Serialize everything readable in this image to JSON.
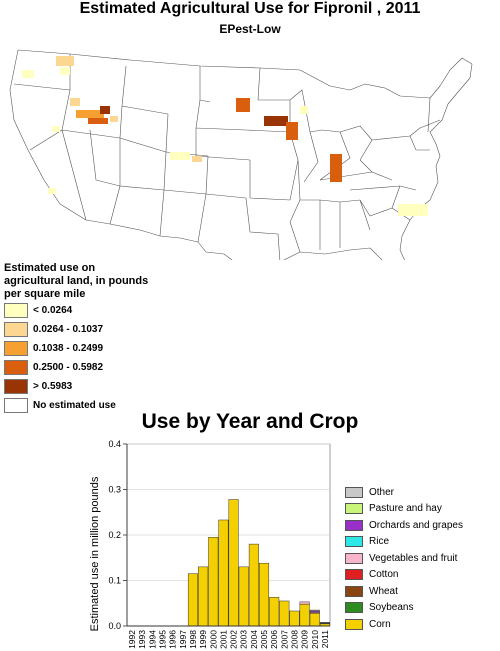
{
  "map": {
    "title": "Estimated Agricultural Use for Fipronil , 2011",
    "subtitle": "EPest-Low",
    "legend": {
      "title": "Estimated use on agricultural land, in pounds per square mile",
      "items": [
        {
          "label": "< 0.0264",
          "color": "#ffffc0"
        },
        {
          "label": "0.0264 - 0.1037",
          "color": "#fbd791"
        },
        {
          "label": "0.1038 - 0.2499",
          "color": "#f5a031"
        },
        {
          "label": "0.2500 - 0.5982",
          "color": "#d95f0e"
        },
        {
          "label": "> 0.5983",
          "color": "#993404"
        },
        {
          "label": "No estimated use",
          "color": "#ffffff"
        }
      ]
    }
  },
  "chart": {
    "title": "Use by Year and Crop",
    "legend": [
      {
        "label": "Other",
        "color": "#c8c8c8"
      },
      {
        "label": "Pasture and hay",
        "color": "#c8f57a"
      },
      {
        "label": "Orchards and grapes",
        "color": "#9b30c8"
      },
      {
        "label": "Rice",
        "color": "#2ee8e8"
      },
      {
        "label": "Vegetables and fruit",
        "color": "#f8b4c8"
      },
      {
        "label": "Cotton",
        "color": "#e02020"
      },
      {
        "label": "Wheat",
        "color": "#8b4513"
      },
      {
        "label": "Soybeans",
        "color": "#2e8b22"
      },
      {
        "label": "Corn",
        "color": "#f5d000"
      }
    ]
  },
  "chart_data": {
    "type": "bar",
    "title": "Use by Year and Crop",
    "xlabel": "",
    "ylabel": "Estimated use in million pounds",
    "ylim": [
      0,
      0.4
    ],
    "yticks": [
      "0.0",
      "0.1",
      "0.2",
      "0.3",
      "0.4"
    ],
    "grid": true,
    "legend_position": "right",
    "categories": [
      "1992",
      "1993",
      "1994",
      "1995",
      "1996",
      "1997",
      "1998",
      "1999",
      "2000",
      "2001",
      "2002",
      "2003",
      "2004",
      "2005",
      "2006",
      "2007",
      "2008",
      "2009",
      "2010",
      "2011"
    ],
    "series": [
      {
        "name": "Corn",
        "values": [
          0,
          0,
          0,
          0,
          0,
          0,
          0.115,
          0.13,
          0.195,
          0.233,
          0.278,
          0.13,
          0.18,
          0.138,
          0.063,
          0.055,
          0.033,
          0.048,
          0.028,
          0.005
        ]
      },
      {
        "name": "Soybeans",
        "values": [
          0,
          0,
          0,
          0,
          0,
          0,
          0,
          0,
          0,
          0,
          0,
          0,
          0,
          0,
          0,
          0,
          0,
          0,
          0,
          0
        ]
      },
      {
        "name": "Wheat",
        "values": [
          0,
          0,
          0,
          0,
          0,
          0,
          0,
          0,
          0,
          0,
          0,
          0,
          0,
          0,
          0,
          0,
          0,
          0,
          0,
          0
        ]
      },
      {
        "name": "Cotton",
        "values": [
          0,
          0,
          0,
          0,
          0,
          0,
          0,
          0,
          0,
          0,
          0,
          0,
          0,
          0,
          0,
          0,
          0,
          0,
          0,
          0
        ]
      },
      {
        "name": "Vegetables and fruit",
        "values": [
          0,
          0,
          0,
          0,
          0,
          0,
          0,
          0,
          0,
          0,
          0,
          0,
          0,
          0,
          0,
          0,
          0,
          0.005,
          0.002,
          0.001
        ]
      },
      {
        "name": "Rice",
        "values": [
          0,
          0,
          0,
          0,
          0,
          0,
          0,
          0,
          0,
          0,
          0,
          0,
          0,
          0,
          0,
          0,
          0,
          0,
          0,
          0
        ]
      },
      {
        "name": "Orchards and grapes",
        "values": [
          0,
          0,
          0,
          0,
          0,
          0,
          0,
          0,
          0,
          0,
          0,
          0,
          0,
          0,
          0,
          0,
          0,
          0,
          0.003,
          0.001
        ]
      },
      {
        "name": "Pasture and hay",
        "values": [
          0,
          0,
          0,
          0,
          0,
          0,
          0,
          0,
          0,
          0,
          0,
          0,
          0,
          0,
          0,
          0,
          0,
          0,
          0,
          0
        ]
      },
      {
        "name": "Other",
        "values": [
          0,
          0,
          0,
          0,
          0,
          0,
          0,
          0,
          0,
          0,
          0,
          0,
          0,
          0,
          0,
          0,
          0,
          0,
          0.002,
          0.001
        ]
      }
    ]
  }
}
